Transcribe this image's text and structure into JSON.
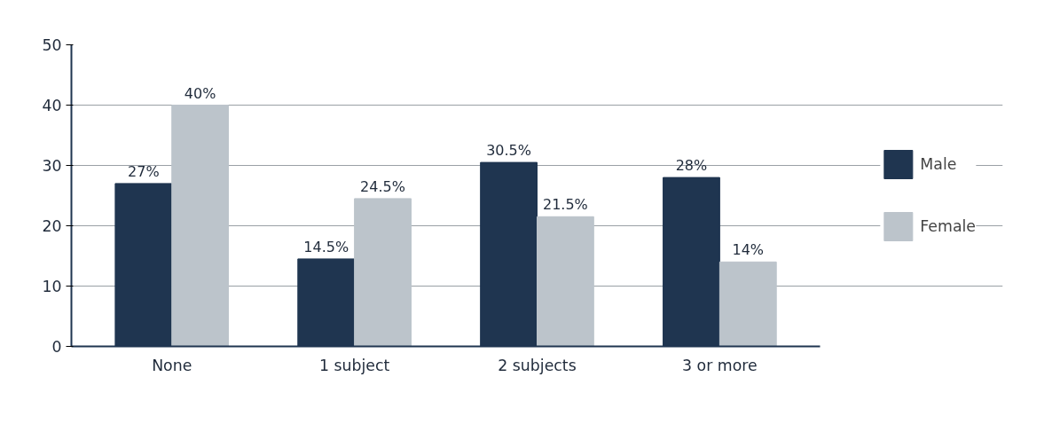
{
  "chart_data": {
    "type": "bar",
    "categories": [
      "None",
      "1 subject",
      "2 subjects",
      "3 or more"
    ],
    "series": [
      {
        "name": "Male",
        "color": "#1f3550",
        "values": [
          27,
          14.5,
          30.5,
          28
        ],
        "value_labels": [
          "27%",
          "14.5%",
          "30.5%",
          "28%"
        ]
      },
      {
        "name": "Female",
        "color": "#bcc4cb",
        "values": [
          40,
          24.5,
          21.5,
          14
        ],
        "value_labels": [
          "40%",
          "24.5%",
          "21.5%",
          "14%"
        ]
      }
    ],
    "ylim": [
      0,
      50
    ],
    "yticks": [
      0,
      10,
      20,
      30,
      40,
      50
    ],
    "grid": "y",
    "legend": "right"
  }
}
